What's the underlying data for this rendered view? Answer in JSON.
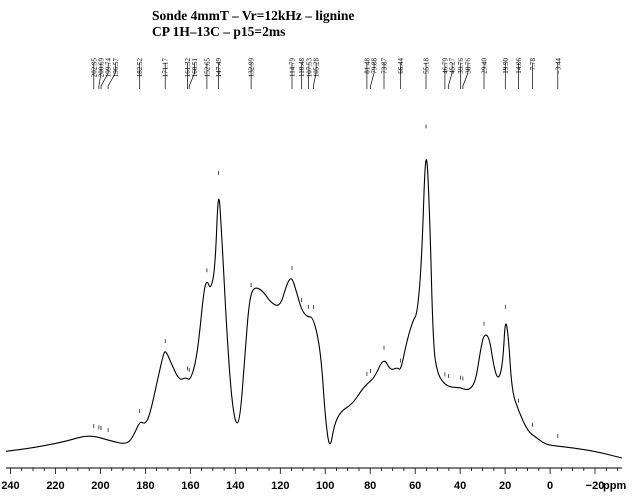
{
  "chart_data": {
    "type": "line",
    "title": "Sonde 4mmT – Vr=12kHz – lignine",
    "subtitle": "CP 1H–13C – p15=2ms",
    "xlabel": "ppm",
    "xlim": [
      242,
      -32
    ],
    "x_reversed": true,
    "xticks": [
      240,
      220,
      200,
      180,
      160,
      140,
      120,
      100,
      80,
      60,
      40,
      20,
      0,
      -20
    ],
    "xtick_labels": [
      "240",
      "220",
      "200",
      "180",
      "160",
      "140",
      "120",
      "100",
      "80",
      "60",
      "40",
      "20",
      "0",
      "−20"
    ],
    "ylabel": "",
    "y_axis_shown": false,
    "peak_labels": [
      "202.95",
      "200.69",
      "199.74",
      "196.57",
      "182.52",
      "171.17",
      "161.32",
      "160.51",
      "152.65",
      "147.49",
      "132.99",
      "114.79",
      "110.48",
      "107.53",
      "105.28",
      "81.48",
      "79.88",
      "73.87",
      "66.44",
      "55.18",
      "46.79",
      "45.27",
      "39.76",
      "38.76",
      "29.40",
      "19.90",
      "14.06",
      "7.78",
      "−3.44"
    ],
    "series": [
      {
        "x": [
          242,
          230,
          215,
          205,
          195,
          188,
          185,
          182.5,
          180,
          178,
          175,
          172,
          171,
          169,
          165,
          162,
          160,
          157,
          154,
          152.6,
          151,
          149,
          147.5,
          146,
          144,
          142,
          140,
          138,
          136,
          134,
          132,
          128,
          124,
          120,
          117,
          115,
          113,
          110.5,
          108,
          105.3,
          102,
          100,
          98,
          96,
          93,
          88,
          84,
          81.5,
          78,
          74,
          71,
          68,
          66.4,
          64,
          61,
          59,
          57,
          55.2,
          53.5,
          52,
          50,
          47,
          44,
          40,
          36,
          33,
          31,
          29.4,
          27,
          25,
          23,
          21,
          19.9,
          18.5,
          17,
          14,
          10,
          6,
          2,
          -4,
          -10,
          -20,
          -32
        ],
        "y": [
          0.02,
          0.03,
          0.05,
          0.07,
          0.05,
          0.04,
          0.07,
          0.11,
          0.1,
          0.13,
          0.22,
          0.31,
          0.32,
          0.29,
          0.23,
          0.24,
          0.23,
          0.3,
          0.5,
          0.53,
          0.5,
          0.56,
          0.82,
          0.66,
          0.4,
          0.2,
          0.1,
          0.11,
          0.28,
          0.46,
          0.51,
          0.5,
          0.46,
          0.45,
          0.52,
          0.54,
          0.5,
          0.44,
          0.42,
          0.42,
          0.32,
          0.12,
          0.02,
          0.1,
          0.14,
          0.16,
          0.2,
          0.22,
          0.24,
          0.3,
          0.26,
          0.27,
          0.26,
          0.34,
          0.41,
          0.43,
          0.6,
          0.96,
          0.72,
          0.33,
          0.25,
          0.22,
          0.21,
          0.21,
          0.2,
          0.23,
          0.32,
          0.37,
          0.36,
          0.27,
          0.23,
          0.28,
          0.42,
          0.36,
          0.2,
          0.14,
          0.08,
          0.06,
          0.04,
          0.035,
          0.03,
          0.02,
          0.0
        ]
      }
    ],
    "colors": {
      "line": "#000000",
      "background": "#ffffff"
    }
  }
}
